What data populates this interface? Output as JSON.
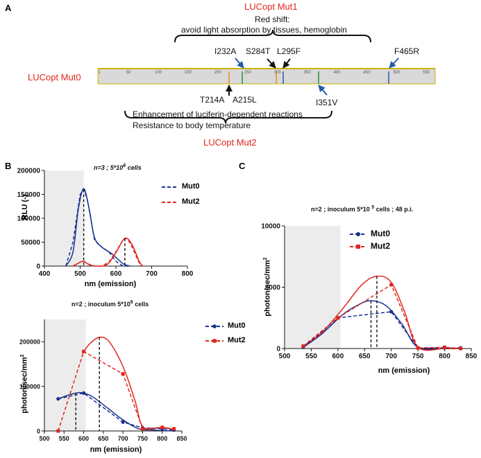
{
  "panels": {
    "a": "A",
    "b": "B",
    "c": "C"
  },
  "panel_a": {
    "mut1_label": "LUCopt Mut1",
    "mut0_label": "LUCopt Mut0",
    "mut2_label": "LUCopt Mut2",
    "top_note_line1": "Red shift:",
    "top_note_line2": "avoid light absorption by tissues, hemoglobin",
    "bottom_note_line1": "Enhancement of luciferin-dependent reactions",
    "bottom_note_line2": "Resistance to body temperature",
    "ruler_ticks": [
      "1",
      "50",
      "100",
      "150",
      "200",
      "250",
      "300",
      "350",
      "400",
      "450",
      "500",
      "550"
    ],
    "mutations_top": [
      "I232A",
      "S284T",
      "L295F",
      "F465R"
    ],
    "mutations_bottom": [
      "T214A",
      "A215L",
      "I351V"
    ]
  },
  "chart_data": [
    {
      "type": "line",
      "panel": "B-top",
      "annotation": "n=3 ; 5*10⁶ cells",
      "title_parts": {
        "main": "n=3 ; 5*10",
        "sup": "6",
        "end": " cells"
      },
      "xlabel": "nm (emission)",
      "ylabel": "RLU (-)",
      "xlim": [
        400,
        800
      ],
      "ylim": [
        0,
        200000
      ],
      "x_ticks": [
        "400",
        "500",
        "600",
        "700",
        "800"
      ],
      "y_ticks": [
        "0",
        "50000",
        "100000",
        "150000",
        "200000"
      ],
      "shaded_region": [
        400,
        510
      ],
      "series": [
        {
          "name": "Mut0",
          "color": "#1a2f8f",
          "style": "dashed",
          "x": [
            460,
            480,
            500,
            510,
            520,
            540,
            560,
            580,
            600,
            620,
            640
          ],
          "y": [
            0,
            50000,
            150000,
            160000,
            140000,
            55000,
            40000,
            30000,
            10000,
            0,
            0
          ]
        },
        {
          "name": "Mut2",
          "color": "#e1251b",
          "style": "dashed",
          "x": [
            480,
            500,
            510,
            520,
            540,
            560,
            580,
            600,
            620,
            630,
            640,
            660,
            670
          ],
          "y": [
            0,
            8000,
            10000,
            5000,
            0,
            0,
            8000,
            30000,
            55000,
            58000,
            48000,
            15000,
            0
          ]
        }
      ],
      "peak_lines": [
        {
          "x": 510,
          "y": 160000
        },
        {
          "x": 625,
          "y": 58000
        }
      ]
    },
    {
      "type": "line",
      "panel": "B-bottom",
      "annotation": "n=2 ; inoculum 5*10 6 cells",
      "title_parts": {
        "main": "n=2 ; inoculum 5*10",
        "sup": "6",
        "end": " cells"
      },
      "xlabel": "nm (emission)",
      "ylabel": "photon/sec/mm²",
      "ylabel_parts": {
        "main": "photon/sec/mm",
        "sup": "2"
      },
      "xlim": [
        500,
        850
      ],
      "ylim": [
        0,
        250000
      ],
      "x_ticks": [
        "500",
        "550",
        "600",
        "650",
        "700",
        "750",
        "800",
        "850"
      ],
      "y_ticks": [
        "0",
        "100000",
        "200000"
      ],
      "shaded_region": [
        500,
        605
      ],
      "series": [
        {
          "name": "Mut0",
          "color": "#1a2f8f",
          "style": "dashed",
          "marker": "circle",
          "x": [
            535,
            600,
            700,
            750,
            800,
            830
          ],
          "y": [
            72000,
            85000,
            20000,
            7000,
            5000,
            2000
          ]
        },
        {
          "name": "Mut2",
          "color": "#e1251b",
          "style": "dashed",
          "marker": "square",
          "x": [
            535,
            600,
            700,
            750,
            800,
            830
          ],
          "y": [
            0,
            178000,
            128000,
            5000,
            8000,
            5000
          ]
        }
      ],
      "peak_lines": [
        {
          "x": 580,
          "y": 85000
        },
        {
          "x": 640,
          "y": 210000
        }
      ]
    },
    {
      "type": "line",
      "panel": "C",
      "annotation": "n=2 ; inoculum 5*10 5 cells ; 48 p.i.",
      "title_parts": {
        "main": "n=2 ; inoculum 5*10 ",
        "sup": "5",
        "end": " cells ; 48 p.i."
      },
      "xlabel": "nm (emission)",
      "ylabel": "photon/sec/mm²",
      "ylabel_parts": {
        "main": "photon/sec/mm",
        "sup": "2"
      },
      "xlim": [
        500,
        850
      ],
      "ylim": [
        0,
        10000
      ],
      "x_ticks": [
        "500",
        "550",
        "600",
        "650",
        "700",
        "750",
        "800",
        "850"
      ],
      "y_ticks": [
        "0",
        "5000",
        "10000"
      ],
      "shaded_region": [
        500,
        605
      ],
      "series": [
        {
          "name": "Mut0",
          "color": "#1a2f8f",
          "style": "dashed",
          "marker": "circle",
          "x": [
            535,
            600,
            700,
            750,
            800,
            830
          ],
          "y": [
            100,
            2500,
            3000,
            50,
            50,
            50
          ]
        },
        {
          "name": "Mut2",
          "color": "#e1251b",
          "style": "dashed",
          "marker": "square",
          "x": [
            535,
            600,
            700,
            750,
            800,
            830
          ],
          "y": [
            200,
            2500,
            5200,
            50,
            100,
            0
          ]
        }
      ],
      "peak_lines": [
        {
          "x": 662,
          "y": 3900
        },
        {
          "x": 673,
          "y": 5900
        }
      ]
    }
  ]
}
